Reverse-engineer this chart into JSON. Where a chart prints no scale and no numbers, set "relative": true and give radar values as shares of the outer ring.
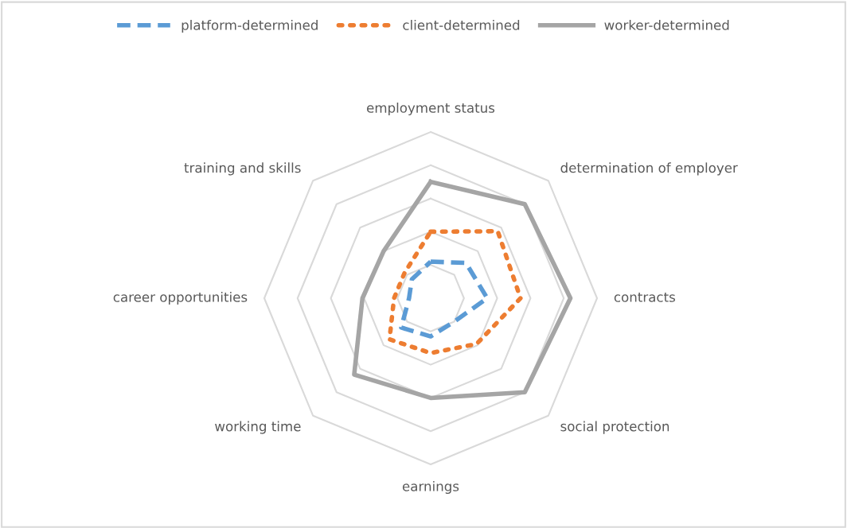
{
  "chart_data": {
    "type": "radar",
    "relative": true,
    "grid": true,
    "legend": "top",
    "categories": [
      "employment status",
      "determination of employer",
      "contracts",
      "social protection",
      "earnings",
      "working time",
      "career opportunities",
      "training and skills"
    ],
    "series": [
      {
        "name": "platform-determined",
        "color": "#5b9bd5",
        "line_style": "dashed",
        "values": [
          0.22,
          0.3,
          0.34,
          0.2,
          0.23,
          0.25,
          0.13,
          0.16
        ]
      },
      {
        "name": "client-determined",
        "color": "#ed7d31",
        "line_style": "dotted",
        "values": [
          0.4,
          0.57,
          0.54,
          0.39,
          0.33,
          0.35,
          0.22,
          0.22
        ]
      },
      {
        "name": "worker-determined",
        "color": "#a5a5a5",
        "line_style": "solid",
        "values": [
          0.7,
          0.8,
          0.84,
          0.8,
          0.6,
          0.65,
          0.41,
          0.4
        ]
      }
    ]
  }
}
